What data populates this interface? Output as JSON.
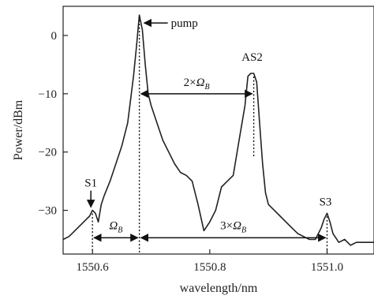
{
  "chart_data": {
    "type": "line",
    "title": "",
    "xlabel": "wavelength/nm",
    "ylabel": "Power/dBm",
    "xlim": [
      1550.55,
      1551.08
    ],
    "ylim": [
      -37.5,
      5
    ],
    "x_ticks": [
      1550.6,
      1550.8,
      1551.0
    ],
    "x_tick_labels": [
      "1550.6",
      "1550.8",
      "1551.0"
    ],
    "y_ticks": [
      0,
      -10,
      -20,
      -30
    ],
    "y_tick_labels": [
      "0",
      "−10",
      "−20",
      "−30"
    ],
    "grid": false,
    "line_color": "#222222",
    "series": [
      {
        "x": [
          1550.55,
          1550.56,
          1550.57,
          1550.58,
          1550.59,
          1550.595,
          1550.6,
          1550.605,
          1550.61,
          1550.615,
          1550.62,
          1550.63,
          1550.64,
          1550.65,
          1550.66,
          1550.67,
          1550.675,
          1550.68,
          1550.685,
          1550.69,
          1550.695,
          1550.7,
          1550.71,
          1550.72,
          1550.73,
          1550.74,
          1550.75,
          1550.76,
          1550.77,
          1550.78,
          1550.79,
          1550.8,
          1550.81,
          1550.82,
          1550.83,
          1550.84,
          1550.85,
          1550.86,
          1550.865,
          1550.87,
          1550.875,
          1550.88,
          1550.885,
          1550.89,
          1550.895,
          1550.9,
          1550.91,
          1550.92,
          1550.93,
          1550.94,
          1550.95,
          1550.96,
          1550.97,
          1550.98,
          1550.99,
          1550.995,
          1551.0,
          1551.005,
          1551.01,
          1551.02,
          1551.03,
          1551.04,
          1551.05,
          1551.06,
          1551.07,
          1551.08
        ],
        "y": [
          -35,
          -34.5,
          -33.5,
          -32.5,
          -31.5,
          -31,
          -30,
          -30.5,
          -32,
          -29,
          -27.5,
          -25,
          -22,
          -19,
          -15,
          -7,
          -2,
          3.5,
          1,
          -5,
          -10,
          -12,
          -15,
          -18,
          -20,
          -22,
          -23.5,
          -24,
          -25,
          -29,
          -33.5,
          -32,
          -30,
          -26,
          -25,
          -24,
          -18,
          -12,
          -7,
          -6.5,
          -6.5,
          -8,
          -15,
          -22,
          -27,
          -29,
          -30,
          -31,
          -32,
          -33,
          -34,
          -34.5,
          -35,
          -35,
          -33,
          -31.5,
          -30.5,
          -32,
          -34,
          -35.5,
          -35,
          -36,
          -35.5,
          -35.5,
          -35.5,
          -35.5
        ]
      }
    ],
    "annotations": {
      "pump": {
        "label": "pump",
        "x": 1550.68,
        "y": 3.5
      },
      "as2": {
        "label": "AS2",
        "x": 1550.875,
        "y": -6.5
      },
      "s1": {
        "label": "S1",
        "x": 1550.6,
        "y": -30
      },
      "s3": {
        "label": "S3",
        "x": 1551.0,
        "y": -30.5
      },
      "span_2": {
        "label_prefix": "2×",
        "label_symbol": "Ω",
        "label_sub": "B",
        "x_from": 1550.68,
        "x_to": 1550.875,
        "y": -10
      },
      "span_1": {
        "label_symbol": "Ω",
        "label_sub": "B",
        "x_from": 1550.6,
        "x_to": 1550.68,
        "y": -34.7
      },
      "span_3": {
        "label_prefix": "3×",
        "label_symbol": "Ω",
        "label_sub": "B",
        "x_from": 1550.68,
        "x_to": 1551.0,
        "y": -34.7
      }
    }
  }
}
